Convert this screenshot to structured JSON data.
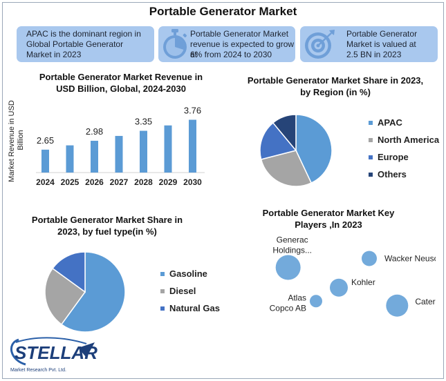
{
  "title": "Portable Generator Market",
  "colors": {
    "apac": "#5b9bd5",
    "north_america": "#a5a5a5",
    "europe": "#4472c4",
    "others": "#264478",
    "box": "#a9c8ee"
  },
  "highlights": [
    {
      "text_lines": [
        "APAC is the dominant region in",
        "Global Portable Generator",
        "Market in 2023"
      ],
      "icon": ""
    },
    {
      "text_lines": [
        "Portable Generator Market",
        "revenue is expected to grow at",
        "6% from 2024 to 2030"
      ],
      "icon": "stopwatch-icon"
    },
    {
      "text_lines": [
        "Portable Generator",
        "Market is valued at",
        "2.5 BN in 2023"
      ],
      "icon": "target-icon"
    }
  ],
  "logo": {
    "brand": "STELLAR",
    "subtitle": "Market Research Pvt. Ltd."
  },
  "chart_data": [
    {
      "type": "bar",
      "title_lines": [
        "Portable Generator Market Revenue in",
        "USD Billion, Global, 2024-2030"
      ],
      "ylabel_lines": [
        "Market Revenue in USD",
        "Billion"
      ],
      "categories": [
        "2024",
        "2025",
        "2026",
        "2027",
        "2028",
        "2029",
        "2030"
      ],
      "values": [
        2.65,
        2.81,
        2.98,
        3.16,
        3.35,
        3.55,
        3.76
      ],
      "data_labels": [
        "2.65",
        "",
        "2.98",
        "",
        "3.35",
        "",
        "3.76"
      ],
      "color": "#5b9bd5",
      "ylim": [
        1.8,
        3.85
      ],
      "grid": false
    },
    {
      "type": "pie",
      "title_lines": [
        "Portable Generator Market Share in 2023,",
        "by Region (in %)"
      ],
      "labels": [
        "APAC",
        "North America",
        "Europe",
        "Others"
      ],
      "values": [
        43,
        28,
        18,
        11
      ],
      "colors": [
        "#5b9bd5",
        "#a5a5a5",
        "#4472c4",
        "#264478"
      ],
      "legend_position": "right"
    },
    {
      "type": "pie",
      "title_lines": [
        "Portable Generator Market Share in",
        "2023, by fuel type(in %)"
      ],
      "labels": [
        "Gasoline",
        "Diesel",
        "Natural Gas"
      ],
      "values": [
        60,
        25,
        15
      ],
      "colors": [
        "#5b9bd5",
        "#a5a5a5",
        "#4472c4"
      ],
      "legend_position": "right"
    },
    {
      "type": "scatter",
      "title_lines": [
        "Portable Generator Market Key",
        "Players ,In 2023"
      ],
      "points": [
        {
          "label_lines": [
            "Generac",
            "Holdings..."
          ],
          "x": 1.0,
          "y": 3.0,
          "size": 18
        },
        {
          "label_lines": [
            "Wacker Neuson SE"
          ],
          "x": 4.2,
          "y": 3.4,
          "size": 11
        },
        {
          "label_lines": [
            "Kohler"
          ],
          "x": 3.0,
          "y": 2.1,
          "size": 13
        },
        {
          "label_lines": [
            "Atlas",
            "Copco AB"
          ],
          "x": 2.1,
          "y": 1.5,
          "size": 9
        },
        {
          "label_lines": [
            "Caterpilar"
          ],
          "x": 5.3,
          "y": 1.3,
          "size": 16
        }
      ],
      "xlim": [
        0,
        6
      ],
      "ylim": [
        0,
        4
      ]
    }
  ]
}
